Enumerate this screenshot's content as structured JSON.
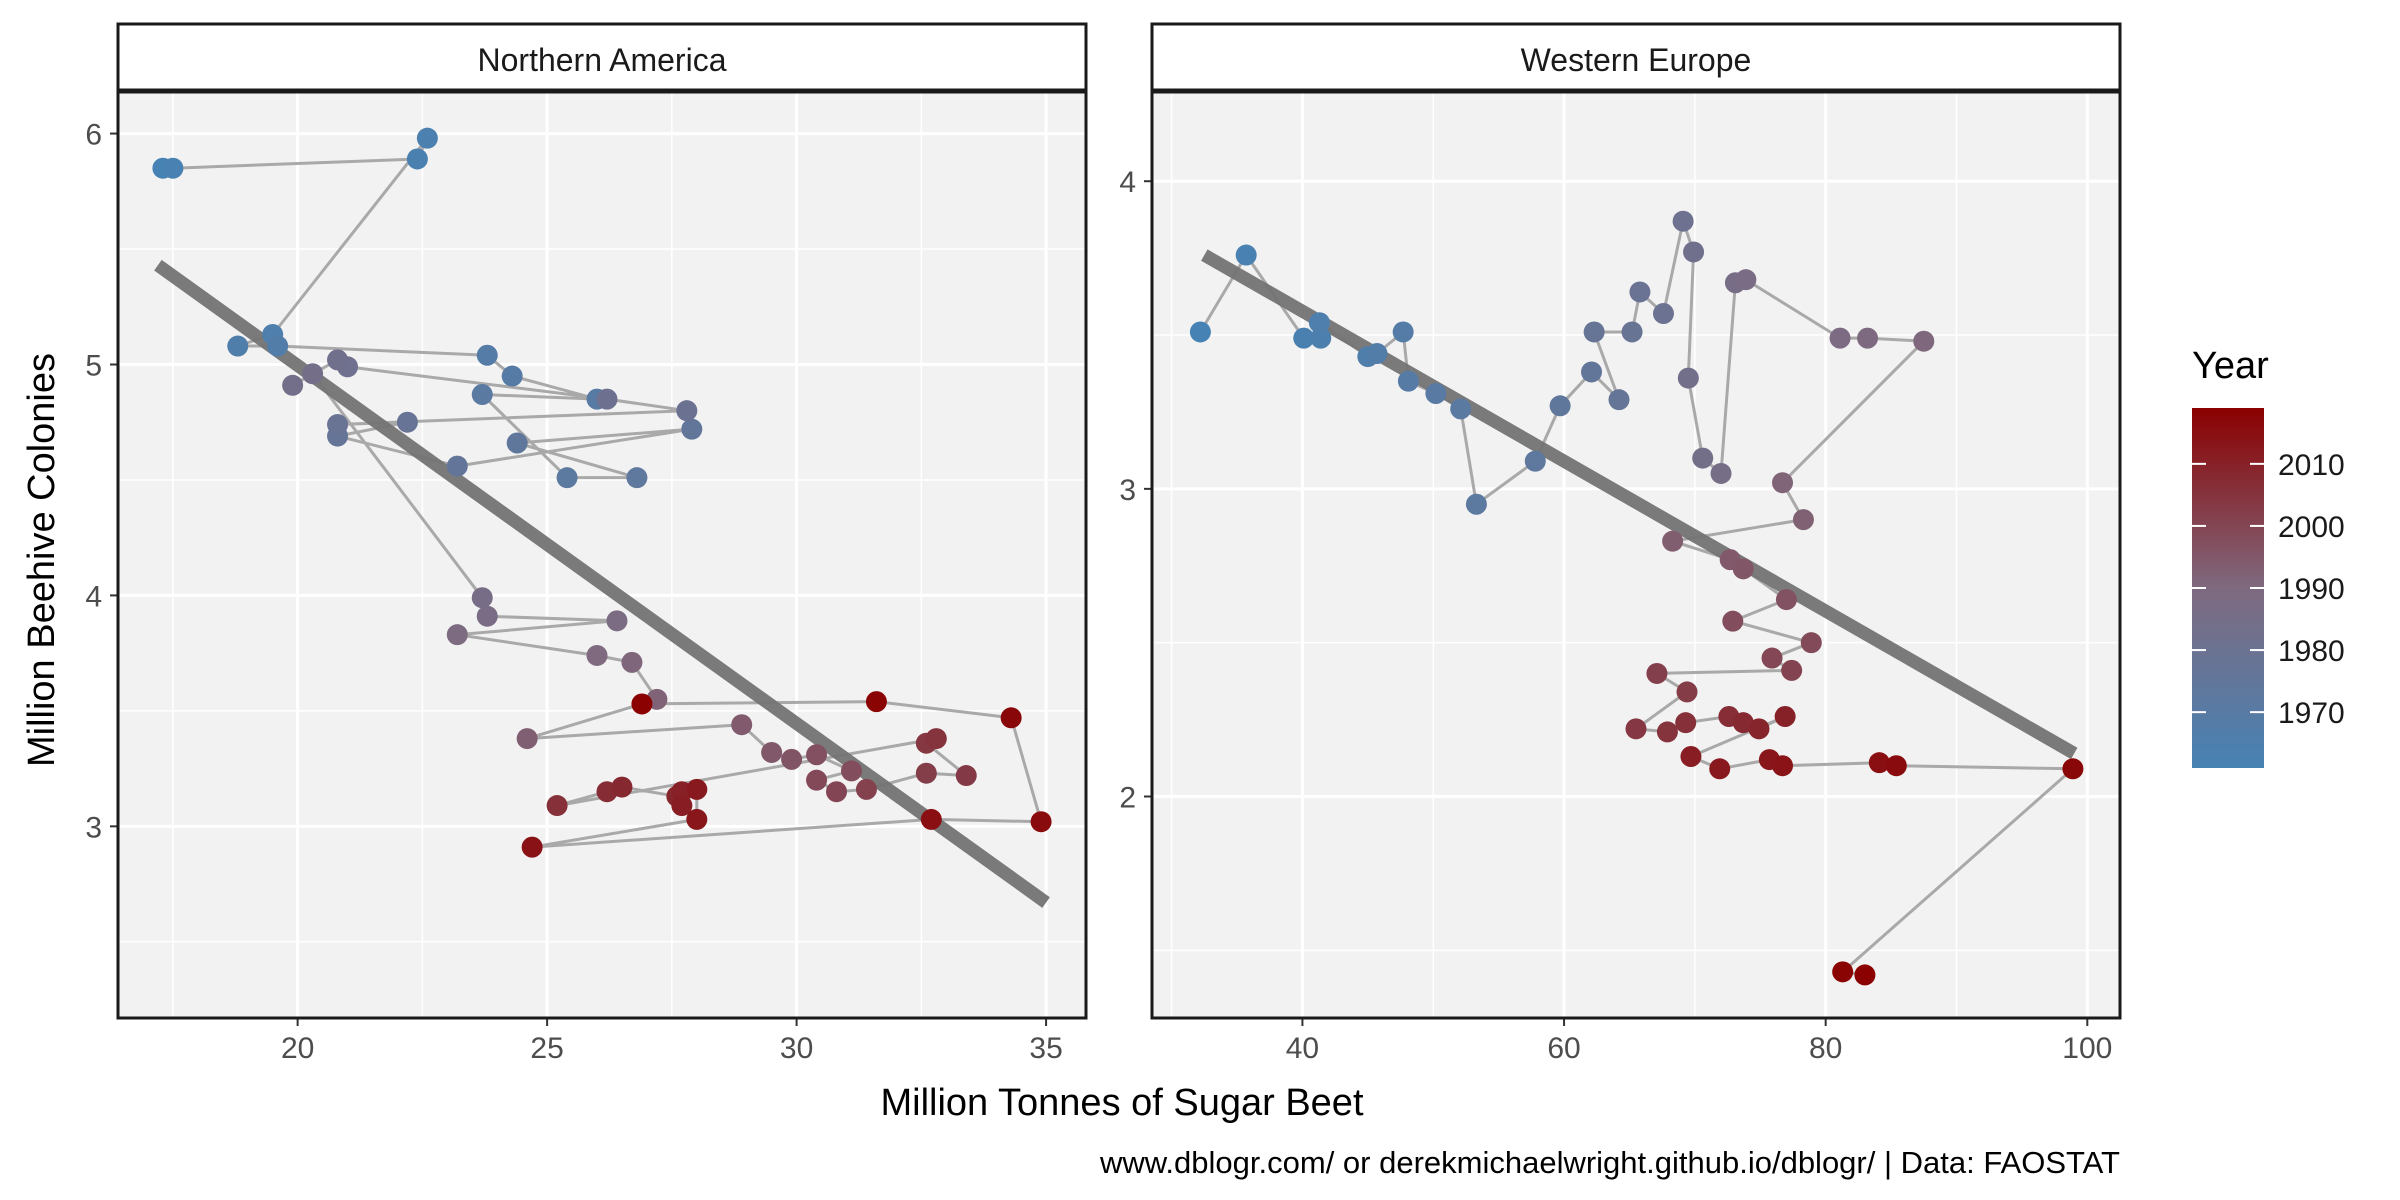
{
  "chart_data": {
    "type": "scatter",
    "xlabel": "Million Tonnes of Sugar Beet",
    "ylabel": "Million Beehive Colonies",
    "caption": "www.dblogr.com/ or derekmichaelwright.github.io/dblogr/ | Data: FAOSTAT",
    "legend": {
      "title": "Year",
      "position": "right",
      "ticks": [
        "2010",
        "2000",
        "1990",
        "1980",
        "1970"
      ],
      "tick_values": [
        2010,
        2000,
        1990,
        1980,
        1970
      ],
      "range": [
        1961,
        2019
      ],
      "low_color": "#4682B4",
      "mid_color": "#7F6A7F",
      "high_color": "#8B0000"
    },
    "colors": {
      "panel_bg": "#f2f2f2",
      "grid": "#ffffff",
      "path": "#a9a9a9",
      "trend": "#737373",
      "strip_bg": "#ffffff"
    },
    "facets": [
      {
        "label": "Northern America",
        "xlim": [
          16.4,
          35.8
        ],
        "ylim": [
          2.17,
          6.18
        ],
        "xticks": [
          20,
          25,
          30,
          35
        ],
        "xtick_labels": [
          "20",
          "25",
          "30",
          "35"
        ],
        "yticks": [
          3,
          4,
          5,
          6
        ],
        "ytick_labels": [
          "3",
          "4",
          "5",
          "6"
        ],
        "trend": {
          "x": [
            17.2,
            35.0
          ],
          "y": [
            5.43,
            2.67
          ]
        },
        "points": [
          [
            17.3,
            5.85
          ],
          [
            17.5,
            5.85
          ],
          [
            22.4,
            5.89
          ],
          [
            22.6,
            5.98
          ],
          [
            19.5,
            5.13
          ],
          [
            18.8,
            5.08
          ],
          [
            19.6,
            5.08
          ],
          [
            23.8,
            5.04
          ],
          [
            24.3,
            4.95
          ],
          [
            26.0,
            4.85
          ],
          [
            23.7,
            4.87
          ],
          [
            25.4,
            4.51
          ],
          [
            26.8,
            4.51
          ],
          [
            24.4,
            4.66
          ],
          [
            27.9,
            4.72
          ],
          [
            23.2,
            4.56
          ],
          [
            20.8,
            4.69
          ],
          [
            22.2,
            4.75
          ],
          [
            20.8,
            4.74
          ],
          [
            27.8,
            4.8
          ],
          [
            26.2,
            4.85
          ],
          [
            21.0,
            4.99
          ],
          [
            20.8,
            5.02
          ],
          [
            19.9,
            4.91
          ],
          [
            20.3,
            4.96
          ],
          [
            23.7,
            3.99
          ],
          [
            23.8,
            3.91
          ],
          [
            26.4,
            3.89
          ],
          [
            23.2,
            3.83
          ],
          [
            26.0,
            3.74
          ],
          [
            26.7,
            3.71
          ],
          [
            27.2,
            3.55
          ],
          [
            24.6,
            3.38
          ],
          [
            28.9,
            3.44
          ],
          [
            29.5,
            3.32
          ],
          [
            29.9,
            3.29
          ],
          [
            30.4,
            3.31
          ],
          [
            31.1,
            3.24
          ],
          [
            30.4,
            3.2
          ],
          [
            30.8,
            3.15
          ],
          [
            31.4,
            3.16
          ],
          [
            32.6,
            3.23
          ],
          [
            33.4,
            3.22
          ],
          [
            32.6,
            3.36
          ],
          [
            32.8,
            3.38
          ],
          [
            25.2,
            3.09
          ],
          [
            26.2,
            3.15
          ],
          [
            26.5,
            3.17
          ],
          [
            27.6,
            3.13
          ],
          [
            27.7,
            3.15
          ],
          [
            27.7,
            3.09
          ],
          [
            28.0,
            3.16
          ],
          [
            28.0,
            3.03
          ],
          [
            24.7,
            2.91
          ],
          [
            32.7,
            3.03
          ],
          [
            34.9,
            3.02
          ],
          [
            34.3,
            3.47
          ],
          [
            31.6,
            3.54
          ],
          [
            26.9,
            3.53
          ]
        ]
      },
      {
        "label": "Western Europe",
        "xlim": [
          28.5,
          102.5
        ],
        "ylim": [
          1.28,
          4.29
        ],
        "xticks": [
          40,
          60,
          80,
          100
        ],
        "xtick_labels": [
          "40",
          "60",
          "80",
          "100"
        ],
        "yticks": [
          2,
          3,
          4
        ],
        "ytick_labels": [
          "2",
          "3",
          "4"
        ],
        "trend": {
          "x": [
            32.5,
            99.0
          ],
          "y": [
            3.76,
            2.14
          ]
        },
        "points": [
          [
            32.2,
            3.51
          ],
          [
            35.7,
            3.76
          ],
          [
            40.1,
            3.49
          ],
          [
            41.4,
            3.49
          ],
          [
            41.3,
            3.54
          ],
          [
            45.0,
            3.43
          ],
          [
            45.7,
            3.44
          ],
          [
            47.7,
            3.51
          ],
          [
            48.1,
            3.35
          ],
          [
            50.2,
            3.31
          ],
          [
            52.1,
            3.26
          ],
          [
            53.3,
            2.95
          ],
          [
            57.8,
            3.09
          ],
          [
            59.7,
            3.27
          ],
          [
            62.1,
            3.38
          ],
          [
            64.2,
            3.29
          ],
          [
            62.3,
            3.51
          ],
          [
            65.2,
            3.51
          ],
          [
            65.8,
            3.64
          ],
          [
            67.6,
            3.57
          ],
          [
            69.1,
            3.87
          ],
          [
            69.9,
            3.77
          ],
          [
            69.5,
            3.36
          ],
          [
            70.6,
            3.1
          ],
          [
            72.0,
            3.05
          ],
          [
            73.1,
            3.67
          ],
          [
            73.9,
            3.68
          ],
          [
            81.1,
            3.49
          ],
          [
            83.2,
            3.49
          ],
          [
            87.5,
            3.48
          ],
          [
            76.7,
            3.02
          ],
          [
            78.3,
            2.9
          ],
          [
            68.3,
            2.83
          ],
          [
            72.7,
            2.77
          ],
          [
            73.7,
            2.74
          ],
          [
            77.0,
            2.64
          ],
          [
            72.9,
            2.57
          ],
          [
            78.9,
            2.5
          ],
          [
            75.9,
            2.45
          ],
          [
            77.4,
            2.41
          ],
          [
            67.1,
            2.4
          ],
          [
            69.4,
            2.34
          ],
          [
            65.5,
            2.22
          ],
          [
            67.9,
            2.21
          ],
          [
            69.3,
            2.24
          ],
          [
            72.6,
            2.26
          ],
          [
            73.7,
            2.24
          ],
          [
            74.9,
            2.22
          ],
          [
            76.9,
            2.26
          ],
          [
            69.7,
            2.13
          ],
          [
            71.9,
            2.09
          ],
          [
            75.7,
            2.12
          ],
          [
            76.7,
            2.1
          ],
          [
            84.1,
            2.11
          ],
          [
            85.4,
            2.1
          ],
          [
            98.9,
            2.09
          ],
          [
            81.3,
            1.43
          ],
          [
            83.0,
            1.42
          ]
        ]
      }
    ]
  }
}
